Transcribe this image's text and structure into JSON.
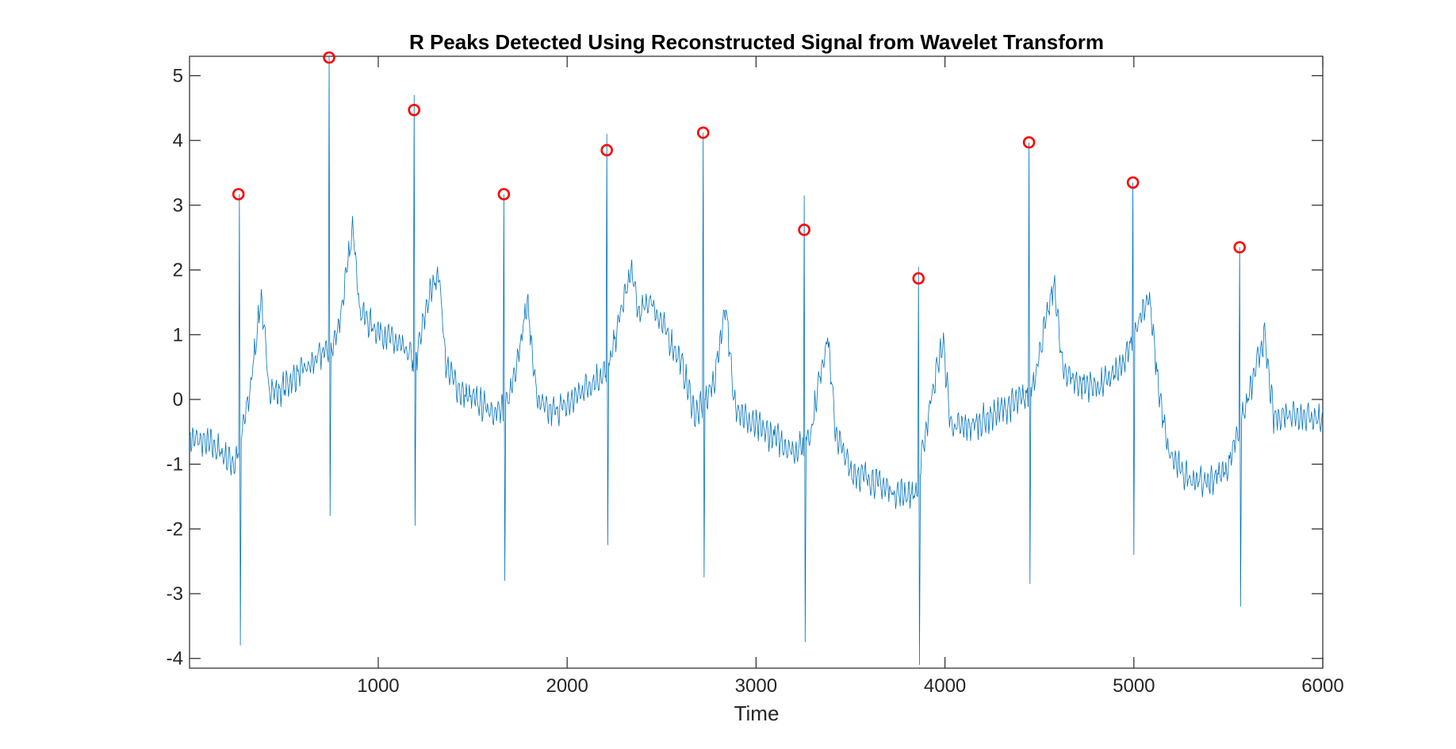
{
  "chart_data": {
    "type": "line",
    "title": "R Peaks Detected Using Reconstructed Signal from Wavelet Transform",
    "xlabel": "Time",
    "ylabel": "",
    "xlim": [
      1,
      6000
    ],
    "ylim": [
      -4.15,
      5.3
    ],
    "xticks": [
      1000,
      2000,
      3000,
      4000,
      5000,
      6000
    ],
    "yticks": [
      -4,
      -3,
      -2,
      -1,
      0,
      1,
      2,
      3,
      4,
      5
    ],
    "grid": false,
    "legend": "none",
    "colors": {
      "signal": "#0072BD",
      "peaks": "#FF0000"
    },
    "series": [
      {
        "style": "line",
        "noise_amplitude": 0.28,
        "baseline": {
          "x": [
            1,
            120,
            240,
            265,
            320,
            380,
            420,
            470,
            560,
            650,
            720,
            760,
            800,
            870,
            900,
            960,
            1060,
            1160,
            1200,
            1260,
            1320,
            1360,
            1440,
            1560,
            1640,
            1680,
            1720,
            1790,
            1840,
            1900,
            2000,
            2100,
            2200,
            2230,
            2280,
            2340,
            2380,
            2440,
            2520,
            2600,
            2680,
            2730,
            2780,
            2840,
            2880,
            2960,
            3080,
            3200,
            3250,
            3290,
            3340,
            3380,
            3420,
            3500,
            3620,
            3740,
            3850,
            3880,
            3930,
            3990,
            4030,
            4100,
            4220,
            4340,
            4440,
            4470,
            4520,
            4580,
            4620,
            4700,
            4820,
            4940,
            4990,
            5020,
            5080,
            5130,
            5180,
            5260,
            5380,
            5500,
            5540,
            5580,
            5640,
            5690,
            5740,
            5820,
            6000
          ],
          "y": [
            -0.6,
            -0.7,
            -1.0,
            -0.7,
            0.1,
            1.6,
            0.2,
            0.1,
            0.35,
            0.55,
            0.75,
            0.8,
            1.3,
            2.7,
            1.4,
            1.15,
            0.95,
            0.7,
            0.6,
            1.5,
            2.0,
            0.5,
            0.1,
            -0.1,
            -0.2,
            -0.1,
            0.4,
            1.5,
            0.0,
            -0.2,
            -0.1,
            0.2,
            0.4,
            0.6,
            1.3,
            2.0,
            1.3,
            1.55,
            1.05,
            0.6,
            -0.25,
            -0.05,
            0.3,
            1.5,
            0.0,
            -0.35,
            -0.55,
            -0.8,
            -0.7,
            -0.5,
            0.4,
            1.0,
            -0.5,
            -1.1,
            -1.25,
            -1.45,
            -1.45,
            -0.85,
            0.1,
            0.9,
            -0.4,
            -0.45,
            -0.3,
            -0.1,
            0.05,
            0.3,
            1.0,
            1.8,
            0.5,
            0.25,
            0.2,
            0.5,
            0.9,
            1.2,
            1.6,
            0.2,
            -0.8,
            -1.15,
            -1.3,
            -1.05,
            -0.55,
            -0.25,
            0.4,
            1.0,
            -0.3,
            -0.2,
            -0.3
          ]
        },
        "qrs_complexes": [
          {
            "t": 265,
            "r": 3.17,
            "s": -3.8
          },
          {
            "t": 740,
            "r": 5.3,
            "s": -1.8
          },
          {
            "t": 1190,
            "r": 4.7,
            "s": -1.95
          },
          {
            "t": 1665,
            "r": 3.17,
            "s": -2.8
          },
          {
            "t": 2210,
            "r": 4.1,
            "s": -2.25
          },
          {
            "t": 2720,
            "r": 4.12,
            "s": -2.75
          },
          {
            "t": 3255,
            "r": 3.15,
            "s": -3.75
          },
          {
            "t": 3860,
            "r": 2.05,
            "s": -4.1
          },
          {
            "t": 4445,
            "r": 3.97,
            "s": -2.85
          },
          {
            "t": 4995,
            "r": 3.35,
            "s": -2.4
          },
          {
            "t": 5560,
            "r": 2.35,
            "s": -3.2
          }
        ]
      },
      {
        "style": "markers",
        "marker": "circle",
        "x": [
          260,
          740,
          1190,
          1665,
          2210,
          2720,
          3255,
          3860,
          4445,
          4995,
          5560
        ],
        "y": [
          3.17,
          5.28,
          4.47,
          3.17,
          3.85,
          4.12,
          2.62,
          1.87,
          3.97,
          3.35,
          2.35
        ]
      }
    ]
  }
}
